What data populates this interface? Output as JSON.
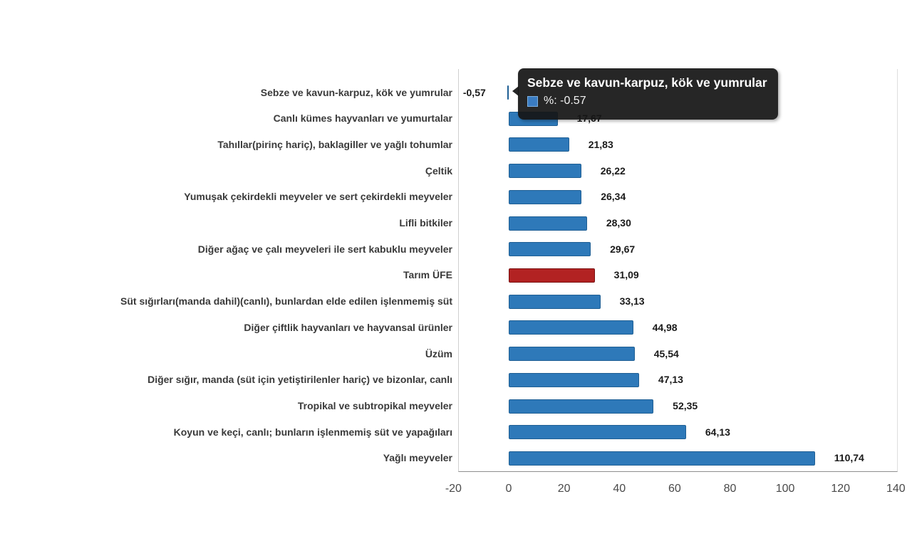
{
  "chart_data": {
    "type": "bar",
    "orientation": "horizontal",
    "title": "",
    "xlabel": "",
    "ylabel": "",
    "xlim": [
      -20,
      140
    ],
    "x_ticks": [
      "-20",
      "0",
      "20",
      "40",
      "60",
      "80",
      "100",
      "120",
      "140"
    ],
    "grid": false,
    "legend": "none",
    "bar_color": "#2e79b9",
    "bar_border_color": "#1f5f94",
    "highlight_color": "#b22222",
    "highlight_border_color": "#7a1010",
    "highlight_index": 7,
    "categories": [
      "Sebze ve kavun-karpuz, kök ve yumrular",
      "Canlı kümes hayvanları ve yumurtalar",
      "Tahıllar(pirinç hariç), baklagiller ve yağlı tohumlar",
      "Çeltik",
      "Yumuşak çekirdekli meyveler ve sert çekirdekli meyveler",
      "Lifli bitkiler",
      "Diğer ağaç ve çalı meyveleri ile sert kabuklu meyveler",
      "Tarım ÜFE",
      "Süt sığırları(manda dahil)(canlı), bunlardan elde edilen işlenmemiş süt",
      "Diğer çiftlik hayvanları ve hayvansal ürünler",
      "Üzüm",
      "Diğer sığır, manda (süt için yetiştirilenler hariç) ve bizonlar, canlı",
      "Tropikal ve subtropikal meyveler",
      "Koyun ve keçi, canlı; bunların işlenmemiş süt ve yapağıları",
      "Yağlı meyveler"
    ],
    "values": [
      -0.57,
      17.67,
      21.83,
      26.22,
      26.34,
      28.3,
      29.67,
      31.09,
      33.13,
      44.98,
      45.54,
      47.13,
      52.35,
      64.13,
      110.74
    ],
    "value_labels": [
      "-0,57",
      "17,67",
      "21,83",
      "26,22",
      "26,34",
      "28,30",
      "29,67",
      "31,09",
      "33,13",
      "44,98",
      "45,54",
      "47,13",
      "52,35",
      "64,13",
      "110,74"
    ]
  },
  "tooltip": {
    "title": "Sebze ve kavun-karpuz, kök ve yumrular",
    "series_label": "%",
    "value": "-0.57",
    "text": "%: -0.57",
    "swatch_color": "#3a7cc2",
    "background": "#161616",
    "text_color": "#ffffff"
  }
}
